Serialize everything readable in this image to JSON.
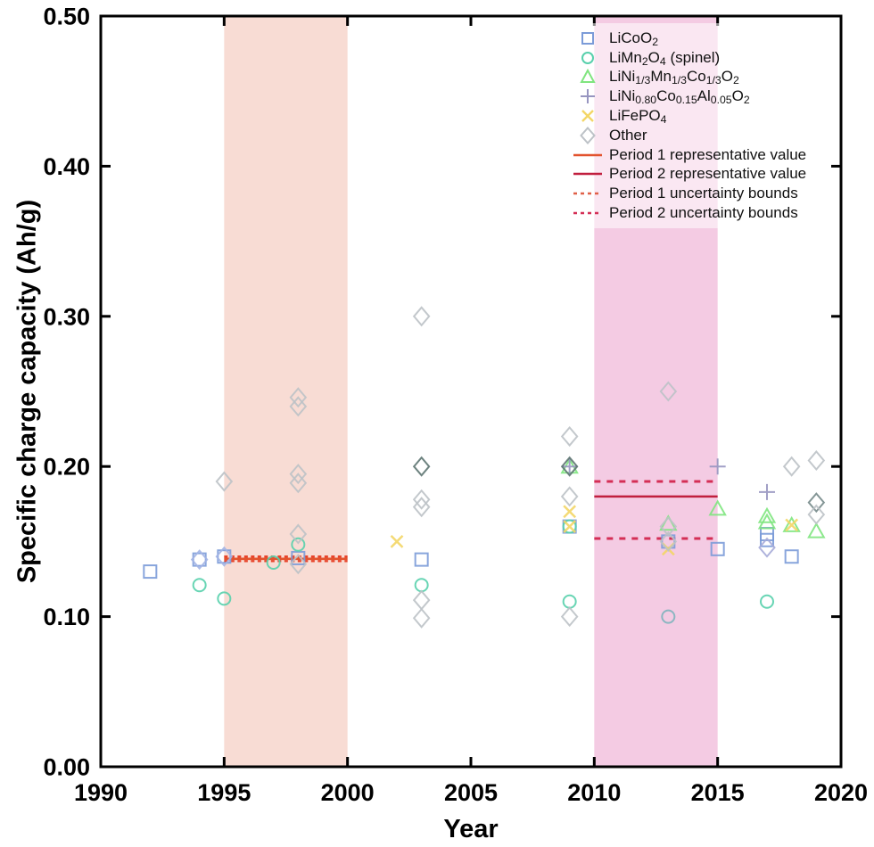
{
  "figure": {
    "xlabel": "Year",
    "ylabel": "Specific charge capacity (Ah/g)"
  },
  "chart_data": {
    "type": "scatter",
    "title": "",
    "xlabel": "Year",
    "ylabel": "Specific charge capacity (Ah/g)",
    "xlim": [
      1990,
      2020
    ],
    "ylim": [
      0,
      0.5
    ],
    "grid": false,
    "legend_position": "top-right",
    "x_ticks": [
      1990,
      1995,
      2000,
      2005,
      2010,
      2015,
      2020
    ],
    "x_tick_labels": [
      "1990",
      "1995",
      "2000",
      "2005",
      "2010",
      "2015",
      "2020"
    ],
    "y_ticks": [
      0,
      0.1,
      0.2,
      0.3,
      0.4,
      0.5
    ],
    "y_tick_labels": [
      "0.00",
      "0.10",
      "0.20",
      "0.30",
      "0.40",
      "0.50"
    ],
    "bands": [
      {
        "name": "period-1",
        "x0": 1995,
        "x1": 2000,
        "color": "#f8dcd4"
      },
      {
        "name": "period-2",
        "x0": 2010,
        "x1": 2015,
        "color": "#f4cbe3"
      }
    ],
    "ref_lines": [
      {
        "name": "period-1-upper-bound",
        "y": 0.14,
        "x0": 1995,
        "x1": 2000,
        "color": "#e8432a",
        "style": "dashed",
        "width": 2.4,
        "dash": "4 3.5"
      },
      {
        "name": "period-1-lower-bound",
        "y": 0.137,
        "x0": 1995,
        "x1": 2000,
        "color": "#e8432a",
        "style": "dashed",
        "width": 2.4,
        "dash": "4 3.5"
      },
      {
        "name": "period-1-representative",
        "y": 0.1385,
        "x0": 1995,
        "x1": 2000,
        "color": "#e2532e",
        "style": "solid",
        "width": 2.6
      },
      {
        "name": "period-2-upper-bound",
        "y": 0.19,
        "x0": 2010,
        "x1": 2015,
        "color": "#d42e55",
        "style": "dashed",
        "width": 3,
        "dash": "7 7"
      },
      {
        "name": "period-2-lower-bound",
        "y": 0.152,
        "x0": 2010,
        "x1": 2015,
        "color": "#d42e55",
        "style": "dashed",
        "width": 3,
        "dash": "7 7"
      },
      {
        "name": "period-2-representative",
        "y": 0.18,
        "x0": 2010,
        "x1": 2015,
        "color": "#c11f3e",
        "style": "solid",
        "width": 2.6
      }
    ],
    "series": [
      {
        "name": "LiCoO2",
        "marker": "square",
        "color": "#7b9bd8",
        "points": [
          [
            1992,
            0.13
          ],
          [
            1994,
            0.138
          ],
          [
            1995,
            0.14
          ],
          [
            1998,
            0.139
          ],
          [
            2003,
            0.138
          ],
          [
            2009,
            0.16
          ],
          [
            2013,
            0.15
          ],
          [
            2015,
            0.145
          ],
          [
            2017,
            0.155
          ],
          [
            2017,
            0.151
          ],
          [
            2018,
            0.14
          ]
        ]
      },
      {
        "name": "LiMn2O4 (spinel)",
        "marker": "circle",
        "color": "#58d0ac",
        "points": [
          [
            1994,
            0.121
          ],
          [
            1995,
            0.112
          ],
          [
            1997,
            0.136
          ],
          [
            1998,
            0.148
          ],
          [
            2003,
            0.121
          ],
          [
            2009,
            0.16
          ],
          [
            2009,
            0.11
          ],
          [
            2013,
            0.1,
            "#7fb4bc"
          ],
          [
            2017,
            0.11
          ]
        ]
      },
      {
        "name": "LiNi1/3Mn1/3Co1/3O2",
        "marker": "triangle",
        "color": "#80e57f",
        "points": [
          [
            2009,
            0.2
          ],
          [
            2013,
            0.162
          ],
          [
            2015,
            0.172
          ],
          [
            2017,
            0.167
          ],
          [
            2017,
            0.163
          ],
          [
            2018,
            0.161
          ],
          [
            2019,
            0.157
          ]
        ]
      },
      {
        "name": "LiNi0.80Co0.15Al0.05O2",
        "marker": "plus",
        "color": "#9795c0",
        "points": [
          [
            2009,
            0.2
          ],
          [
            2015,
            0.2
          ],
          [
            2017,
            0.183
          ]
        ]
      },
      {
        "name": "LiFePO4",
        "marker": "x",
        "color": "#f3d666",
        "points": [
          [
            2002,
            0.15
          ],
          [
            2009,
            0.17
          ],
          [
            2009,
            0.16
          ],
          [
            2013,
            0.145
          ],
          [
            2018,
            0.161
          ]
        ]
      },
      {
        "name": "Other",
        "marker": "diamond",
        "color": "#bdc2c7",
        "points": [
          [
            1994,
            0.138,
            "#a3b4e4"
          ],
          [
            1995,
            0.19
          ],
          [
            1995,
            0.14,
            "#a3b4e4"
          ],
          [
            1998,
            0.246
          ],
          [
            1998,
            0.24
          ],
          [
            1998,
            0.195
          ],
          [
            1998,
            0.189
          ],
          [
            1998,
            0.155
          ],
          [
            1998,
            0.135
          ],
          [
            2003,
            0.3
          ],
          [
            2003,
            0.2,
            "#5e7672"
          ],
          [
            2003,
            0.178
          ],
          [
            2003,
            0.173
          ],
          [
            2003,
            0.111
          ],
          [
            2003,
            0.099
          ],
          [
            2009,
            0.22
          ],
          [
            2009,
            0.2,
            "#5e7672"
          ],
          [
            2009,
            0.18
          ],
          [
            2009,
            0.1
          ],
          [
            2013,
            0.25
          ],
          [
            2013,
            0.16
          ],
          [
            2013,
            0.15
          ],
          [
            2017,
            0.146,
            "#a6abd8"
          ],
          [
            2018,
            0.2
          ],
          [
            2019,
            0.204
          ],
          [
            2019,
            0.176,
            "#76898a"
          ],
          [
            2019,
            0.168
          ]
        ]
      }
    ],
    "legend": [
      {
        "marker": "square",
        "color": "#7b9bd8",
        "label": [
          {
            "t": "LiCoO"
          },
          {
            "t": "2",
            "s": 1
          }
        ]
      },
      {
        "marker": "circle",
        "color": "#58d0ac",
        "label": [
          {
            "t": "LiMn"
          },
          {
            "t": "2",
            "s": 1
          },
          {
            "t": "O"
          },
          {
            "t": "4",
            "s": 1
          },
          {
            "t": " (spinel)"
          }
        ]
      },
      {
        "marker": "triangle",
        "color": "#80e57f",
        "label": [
          {
            "t": "LiNi"
          },
          {
            "t": "1/3",
            "s": 1
          },
          {
            "t": "Mn"
          },
          {
            "t": "1/3",
            "s": 1
          },
          {
            "t": "Co"
          },
          {
            "t": "1/3",
            "s": 1
          },
          {
            "t": "O"
          },
          {
            "t": "2",
            "s": 1
          }
        ]
      },
      {
        "marker": "plus",
        "color": "#9795c0",
        "label": [
          {
            "t": "LiNi"
          },
          {
            "t": "0.80",
            "s": 1
          },
          {
            "t": "Co"
          },
          {
            "t": "0.15",
            "s": 1
          },
          {
            "t": "Al"
          },
          {
            "t": "0.05",
            "s": 1
          },
          {
            "t": "O"
          },
          {
            "t": "2",
            "s": 1
          }
        ]
      },
      {
        "marker": "x",
        "color": "#f3d666",
        "label": [
          {
            "t": "LiFePO"
          },
          {
            "t": "4",
            "s": 1
          }
        ]
      },
      {
        "marker": "diamond",
        "color": "#bdc2c7",
        "label": [
          {
            "t": "Other"
          }
        ]
      },
      {
        "marker": "line-solid",
        "color": "#e2532e",
        "label": [
          {
            "t": "Period 1 representative value"
          }
        ]
      },
      {
        "marker": "line-solid",
        "color": "#c11f3e",
        "label": [
          {
            "t": "Period 2 representative value"
          }
        ]
      },
      {
        "marker": "line-dashed",
        "color": "#e06048",
        "label": [
          {
            "t": "Period 1 uncertainty bounds"
          }
        ]
      },
      {
        "marker": "line-dashed",
        "color": "#d42e55",
        "label": [
          {
            "t": "Period 2 uncertainty bounds"
          }
        ]
      }
    ]
  }
}
